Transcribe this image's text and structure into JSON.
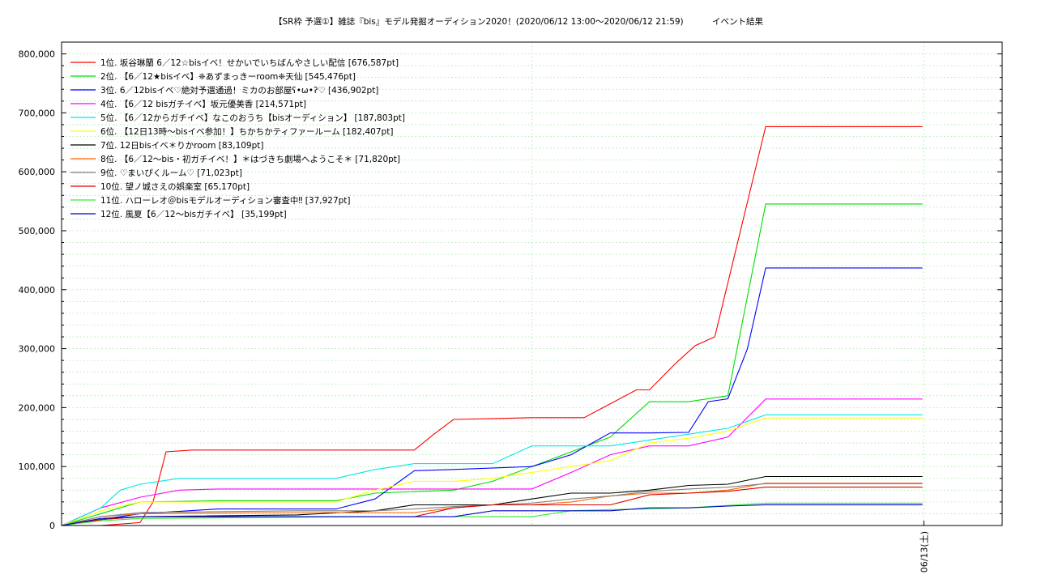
{
  "chart_data": {
    "type": "line",
    "title": "【SR枠 予選①】雑誌『bis』モデル発掘オーディション2020！(2020/06/12 13:00～2020/06/12 21:59)",
    "subtitle": "イベント結果",
    "xlabel": "",
    "ylabel": "",
    "x_tick_labels": [
      "06/13(土)"
    ],
    "y_tick_labels": [
      "0",
      "100,000",
      "200,000",
      "300,000",
      "400,000",
      "500,000",
      "600,000",
      "700,000",
      "800,000"
    ],
    "ylim": [
      0,
      820000
    ],
    "xlim": [
      "2020/06/12 13:00",
      "2020/06/13 01:00"
    ],
    "grid": true,
    "legend_position": "top-left",
    "series": [
      {
        "name": "1位. 坂谷琳蘭 6／12☆bisイベ！せかいでいちばんやさしい配信 [676,587pt]",
        "color": "#ff0000",
        "x": [
          "13:00",
          "13:30",
          "14:00",
          "14:10",
          "14:20",
          "14:40",
          "15:00",
          "17:00",
          "17:30",
          "17:45",
          "18:00",
          "19:00",
          "19:40",
          "20:20",
          "20:30",
          "20:50",
          "21:05",
          "21:20",
          "21:59",
          "23:59"
        ],
        "y": [
          0,
          0,
          5000,
          40000,
          125000,
          128000,
          128000,
          128000,
          128000,
          155000,
          180000,
          183000,
          183000,
          230000,
          230000,
          275000,
          305000,
          320000,
          676587,
          676587
        ]
      },
      {
        "name": "2位. 【6／12★bisイベ】❈あずまっきーroom❈天仙 [545,476pt]",
        "color": "#00dd00",
        "x": [
          "13:00",
          "13:30",
          "14:00",
          "15:00",
          "16:30",
          "17:00",
          "18:00",
          "18:30",
          "20:00",
          "20:30",
          "21:00",
          "21:30",
          "21:59",
          "23:59"
        ],
        "y": [
          0,
          20000,
          40000,
          42000,
          42000,
          55000,
          60000,
          75000,
          150000,
          210000,
          210000,
          220000,
          545476,
          545476
        ]
      },
      {
        "name": "3位. 6／12bisイベ♡絶対予選通過！ミカのお部屋ʕ•ω•ʔ♡ [436,902pt]",
        "color": "#0000ff",
        "x": [
          "13:00",
          "14:00",
          "15:00",
          "16:30",
          "17:00",
          "17:30",
          "18:00",
          "19:00",
          "19:30",
          "20:00",
          "20:30",
          "21:00",
          "21:15",
          "21:30",
          "21:45",
          "21:59",
          "23:59"
        ],
        "y": [
          0,
          20000,
          28000,
          28000,
          45000,
          93000,
          95000,
          100000,
          120000,
          157000,
          157000,
          158000,
          210000,
          215000,
          300000,
          436902,
          436902
        ]
      },
      {
        "name": "4位. 【6／12 bisガチイベ】坂元優美香 [214,571pt]",
        "color": "#ff00ff",
        "x": [
          "13:00",
          "13:30",
          "14:00",
          "14:30",
          "15:00",
          "18:00",
          "19:00",
          "19:30",
          "20:00",
          "20:30",
          "21:00",
          "21:30",
          "21:59",
          "23:59"
        ],
        "y": [
          0,
          30000,
          48000,
          60000,
          62000,
          62000,
          62000,
          90000,
          120000,
          135000,
          135000,
          150000,
          214571,
          214571
        ]
      },
      {
        "name": "5位. 【6／12からガチイベ】なこのおうち【bisオーディション】 [187,803pt]",
        "color": "#00e8e8",
        "x": [
          "13:00",
          "13:30",
          "13:45",
          "14:00",
          "14:30",
          "16:30",
          "17:00",
          "17:30",
          "18:00",
          "18:30",
          "19:00",
          "20:00",
          "20:30",
          "21:00",
          "21:30",
          "21:59",
          "23:59"
        ],
        "y": [
          0,
          30000,
          60000,
          70000,
          80000,
          80000,
          95000,
          105000,
          105000,
          105000,
          135000,
          135000,
          145000,
          155000,
          165000,
          187803,
          187803
        ]
      },
      {
        "name": "6位. 【12日13時～bisイベ参加！】ちかちかティファールーム [182,407pt]",
        "color": "#ffff00",
        "x": [
          "13:00",
          "13:30",
          "14:00",
          "16:30",
          "17:00",
          "17:30",
          "18:00",
          "18:30",
          "19:30",
          "20:00",
          "20:30",
          "21:00",
          "21:30",
          "21:59",
          "23:59"
        ],
        "y": [
          0,
          25000,
          40000,
          40000,
          60000,
          75000,
          75000,
          80000,
          100000,
          110000,
          140000,
          148000,
          160000,
          182407,
          182407
        ]
      },
      {
        "name": "7位. 12日bisイベ＊りかroom [83,109pt]",
        "color": "#000000",
        "x": [
          "13:00",
          "13:30",
          "14:00",
          "16:00",
          "17:00",
          "17:30",
          "18:00",
          "18:30",
          "19:00",
          "19:30",
          "20:00",
          "20:30",
          "21:00",
          "21:30",
          "21:59",
          "23:59"
        ],
        "y": [
          0,
          10000,
          15000,
          18000,
          25000,
          35000,
          35000,
          35000,
          45000,
          55000,
          55000,
          60000,
          68000,
          70000,
          83109,
          83109
        ]
      },
      {
        "name": "8位. 【6／12～bis・初ガチイベ！】＊はづきち劇場へようこそ＊ [71,820pt]",
        "color": "#ff6600",
        "x": [
          "13:00",
          "13:30",
          "14:00",
          "16:00",
          "17:00",
          "17:30",
          "18:00",
          "18:30",
          "19:00",
          "19:30",
          "20:00",
          "20:30",
          "21:00",
          "21:30",
          "21:59",
          "23:59"
        ],
        "y": [
          0,
          15000,
          20000,
          22000,
          22000,
          22000,
          30000,
          35000,
          35000,
          40000,
          50000,
          55000,
          55000,
          60000,
          71820,
          71820
        ]
      },
      {
        "name": "9位. ♡まいぴくルーム♡ [71,023pt]",
        "color": "#808080",
        "x": [
          "13:00",
          "13:30",
          "14:00",
          "16:00",
          "17:00",
          "17:30",
          "18:00",
          "18:30",
          "19:00",
          "19:30",
          "20:00",
          "20:30",
          "21:00",
          "21:30",
          "21:59",
          "23:59"
        ],
        "y": [
          0,
          15000,
          22000,
          25000,
          25000,
          28000,
          32000,
          35000,
          38000,
          45000,
          50000,
          58000,
          62000,
          65000,
          71023,
          71023
        ]
      },
      {
        "name": "10位. 望ノ城さえの娯楽室 [65,170pt]",
        "color": "#dd0000",
        "x": [
          "13:00",
          "13:30",
          "14:00",
          "16:00",
          "17:00",
          "17:30",
          "18:00",
          "18:30",
          "19:00",
          "19:30",
          "20:00",
          "20:30",
          "21:00",
          "21:30",
          "21:59",
          "23:59"
        ],
        "y": [
          0,
          10000,
          15000,
          15000,
          15000,
          15000,
          30000,
          35000,
          35000,
          35000,
          35000,
          52000,
          55000,
          58000,
          65170,
          65170
        ]
      },
      {
        "name": "11位. ハローレオ＠bisモデルオーディション審査中‼ [37,927pt]",
        "color": "#33ee33",
        "x": [
          "13:00",
          "13:30",
          "14:00",
          "16:00",
          "17:00",
          "18:00",
          "19:00",
          "19:30",
          "20:00",
          "20:30",
          "21:00",
          "21:30",
          "21:59",
          "23:59"
        ],
        "y": [
          0,
          8000,
          12000,
          14000,
          15000,
          15000,
          15000,
          25000,
          27000,
          28000,
          30000,
          34000,
          37927,
          37927
        ]
      },
      {
        "name": "12位. 風夏【6／12～bisガチイベ】 [35,199pt]",
        "color": "#0000cc",
        "x": [
          "13:00",
          "13:30",
          "14:00",
          "16:00",
          "17:00",
          "17:30",
          "18:00",
          "18:30",
          "19:00",
          "19:30",
          "20:00",
          "20:30",
          "21:00",
          "21:30",
          "21:59",
          "23:59"
        ],
        "y": [
          0,
          12000,
          15000,
          15000,
          15000,
          15000,
          15000,
          25000,
          25000,
          25000,
          25000,
          30000,
          30000,
          33000,
          35199,
          35199
        ]
      }
    ]
  }
}
